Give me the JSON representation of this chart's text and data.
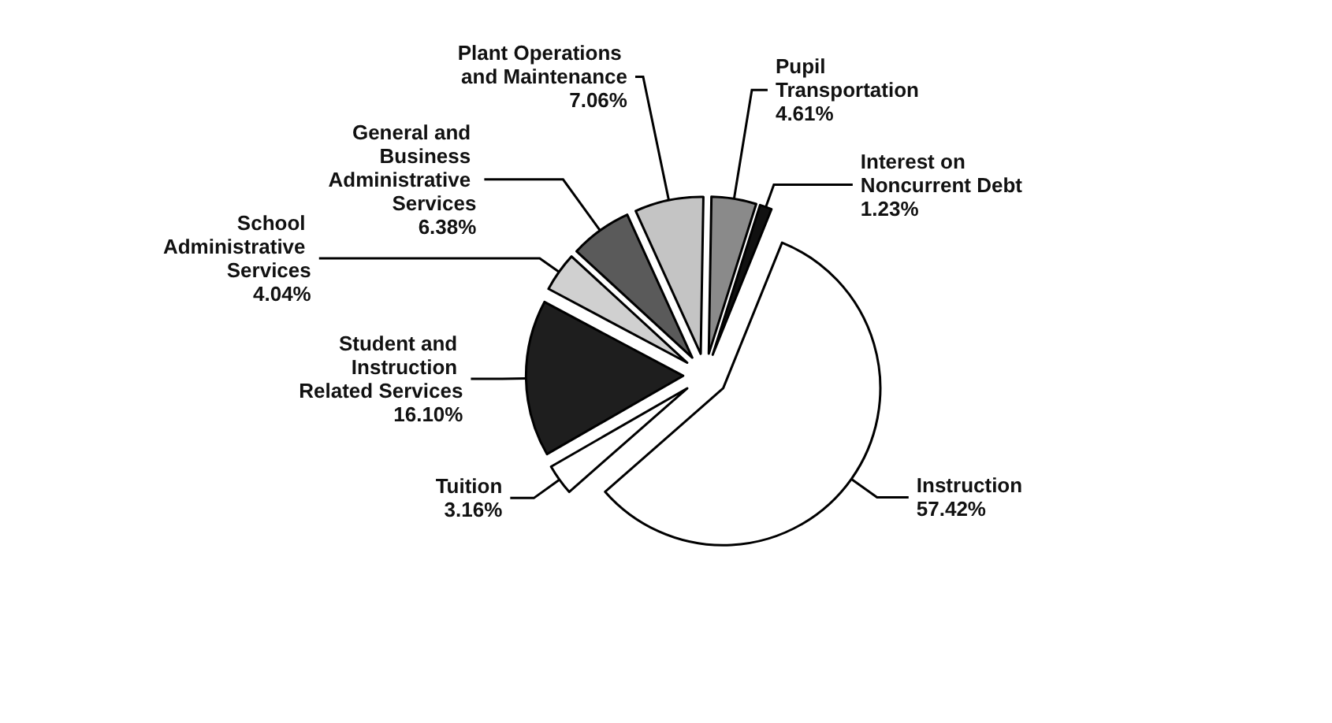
{
  "chart_data": {
    "type": "pie",
    "categories": [
      "Instruction",
      "Tuition",
      "Student and Instruction Related Services",
      "School Administrative Services",
      "General and Business Administrative Services",
      "Plant Operations and Maintenance",
      "Pupil Transportation",
      "Interest on Noncurrent Debt"
    ],
    "values": [
      57.42,
      3.16,
      16.1,
      4.04,
      6.38,
      7.06,
      4.61,
      1.23
    ],
    "value_labels": [
      "57.42%",
      "3.16%",
      "16.10%",
      "4.04%",
      "6.38%",
      "7.06%",
      "4.61%",
      "1.23%"
    ],
    "colors": [
      "#ffffff",
      "#ffffff",
      "#1e1e1e",
      "#d0d0d0",
      "#5a5a5a",
      "#c4c4c4",
      "#8a8a8a",
      "#111111"
    ],
    "legend": false
  }
}
